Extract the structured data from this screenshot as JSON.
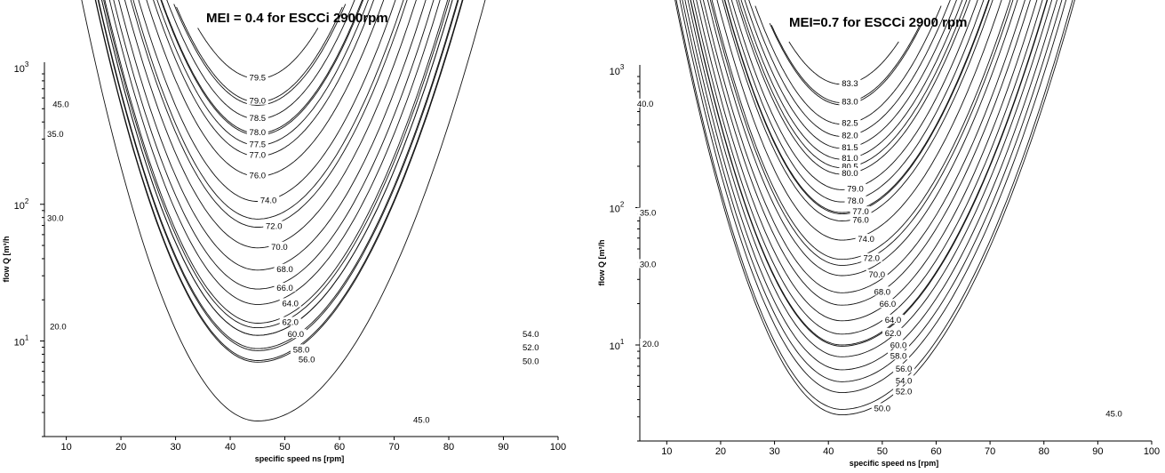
{
  "chart_data": [
    {
      "type": "line",
      "subtype": "contour",
      "title": "MEI = 0.4 for ESCCi 2900rpm",
      "xlabel": "specific speed ns [rpm]",
      "ylabel": "flow Q [m³/h",
      "xscale": "linear",
      "yscale": "log",
      "xlim": [
        6,
        100
      ],
      "ylim": [
        2,
        1000
      ],
      "xticks": [
        10,
        20,
        30,
        40,
        50,
        60,
        70,
        80,
        90,
        100
      ],
      "yticks": [
        {
          "base": "10",
          "exp": "1",
          "value": 10
        },
        {
          "base": "10",
          "exp": "2",
          "value": 100
        },
        {
          "base": "10",
          "exp": "3",
          "value": 1000
        }
      ],
      "vertex": {
        "x": 45,
        "y": 1300
      },
      "contour_labels": [
        {
          "label": "79.5",
          "x": 45,
          "y": 830
        },
        {
          "label": "79.0",
          "x": 45,
          "y": 560
        },
        {
          "label": "78.5",
          "x": 45,
          "y": 420
        },
        {
          "label": "78.0",
          "x": 45,
          "y": 330
        },
        {
          "label": "77.5",
          "x": 45,
          "y": 270
        },
        {
          "label": "77.0",
          "x": 45,
          "y": 225
        },
        {
          "label": "76.0",
          "x": 45,
          "y": 160
        },
        {
          "label": "74.0",
          "x": 47,
          "y": 105
        },
        {
          "label": "72.0",
          "x": 48,
          "y": 68
        },
        {
          "label": "70.0",
          "x": 49,
          "y": 48
        },
        {
          "label": "68.0",
          "x": 50,
          "y": 33
        },
        {
          "label": "66.0",
          "x": 50,
          "y": 24
        },
        {
          "label": "64.0",
          "x": 51,
          "y": 18.5
        },
        {
          "label": "62.0",
          "x": 51,
          "y": 13.5
        },
        {
          "label": "60.0",
          "x": 52,
          "y": 11
        },
        {
          "label": "58.0",
          "x": 53,
          "y": 8.5
        },
        {
          "label": "56.0",
          "x": 54,
          "y": 7.2
        },
        {
          "label": "54.0",
          "x": 95,
          "y": 11
        },
        {
          "label": "52.0",
          "x": 95,
          "y": 8.8
        },
        {
          "label": "50.0",
          "x": 95,
          "y": 7.0
        },
        {
          "label": "45.0",
          "x": 75,
          "y": 2.6
        },
        {
          "label": "45.0",
          "x": 9,
          "y": 530
        },
        {
          "label": "35.0",
          "x": 8,
          "y": 320
        },
        {
          "label": "30.0",
          "x": 8,
          "y": 78
        },
        {
          "label": "20.0",
          "x": 8.5,
          "y": 12.5
        }
      ]
    },
    {
      "type": "line",
      "subtype": "contour",
      "title": "MEI=0.7 for ESCCi 2900 rpm",
      "xlabel": "specific speed ns [rpm]",
      "ylabel": "flow Q [m³/h",
      "xscale": "linear",
      "yscale": "log",
      "xlim": [
        5,
        100
      ],
      "ylim": [
        2,
        1000
      ],
      "xticks": [
        10,
        20,
        30,
        40,
        50,
        60,
        70,
        80,
        90,
        100
      ],
      "yticks": [
        {
          "base": "10",
          "exp": "1",
          "value": 10
        },
        {
          "base": "10",
          "exp": "2",
          "value": 100
        },
        {
          "base": "10",
          "exp": "3",
          "value": 1000
        }
      ],
      "vertex": {
        "x": 42.5,
        "y": 1150
      },
      "contour_labels": [
        {
          "label": "83.3",
          "x": 44,
          "y": 790
        },
        {
          "label": "83.0",
          "x": 44,
          "y": 580
        },
        {
          "label": "82.5",
          "x": 44,
          "y": 405
        },
        {
          "label": "82.0",
          "x": 44,
          "y": 330
        },
        {
          "label": "81.5",
          "x": 44,
          "y": 270
        },
        {
          "label": "81.0",
          "x": 44,
          "y": 225
        },
        {
          "label": "80.5",
          "x": 44,
          "y": 195
        },
        {
          "label": "80.0",
          "x": 44,
          "y": 175
        },
        {
          "label": "79.0",
          "x": 45,
          "y": 135
        },
        {
          "label": "78.0",
          "x": 45,
          "y": 110
        },
        {
          "label": "77.0",
          "x": 46,
          "y": 92
        },
        {
          "label": "76.0",
          "x": 46,
          "y": 80
        },
        {
          "label": "74.0",
          "x": 47,
          "y": 58
        },
        {
          "label": "72.0",
          "x": 48,
          "y": 42
        },
        {
          "label": "70.0",
          "x": 49,
          "y": 32
        },
        {
          "label": "68.0",
          "x": 50,
          "y": 24
        },
        {
          "label": "66.0",
          "x": 51,
          "y": 19.5
        },
        {
          "label": "64.0",
          "x": 52,
          "y": 15
        },
        {
          "label": "62.0",
          "x": 52,
          "y": 12
        },
        {
          "label": "60.0",
          "x": 53,
          "y": 9.8
        },
        {
          "label": "58.0",
          "x": 53,
          "y": 8.2
        },
        {
          "label": "56.0",
          "x": 54,
          "y": 6.6
        },
        {
          "label": "54.0",
          "x": 54,
          "y": 5.4
        },
        {
          "label": "52.0",
          "x": 54,
          "y": 4.5
        },
        {
          "label": "50.0",
          "x": 50,
          "y": 3.4
        },
        {
          "label": "45.0",
          "x": 93,
          "y": 3.1
        },
        {
          "label": "40.0",
          "x": 6,
          "y": 560
        },
        {
          "label": "35.0",
          "x": 6.5,
          "y": 90
        },
        {
          "label": "30.0",
          "x": 6.5,
          "y": 38
        },
        {
          "label": "20.0",
          "x": 7,
          "y": 10
        }
      ]
    }
  ]
}
